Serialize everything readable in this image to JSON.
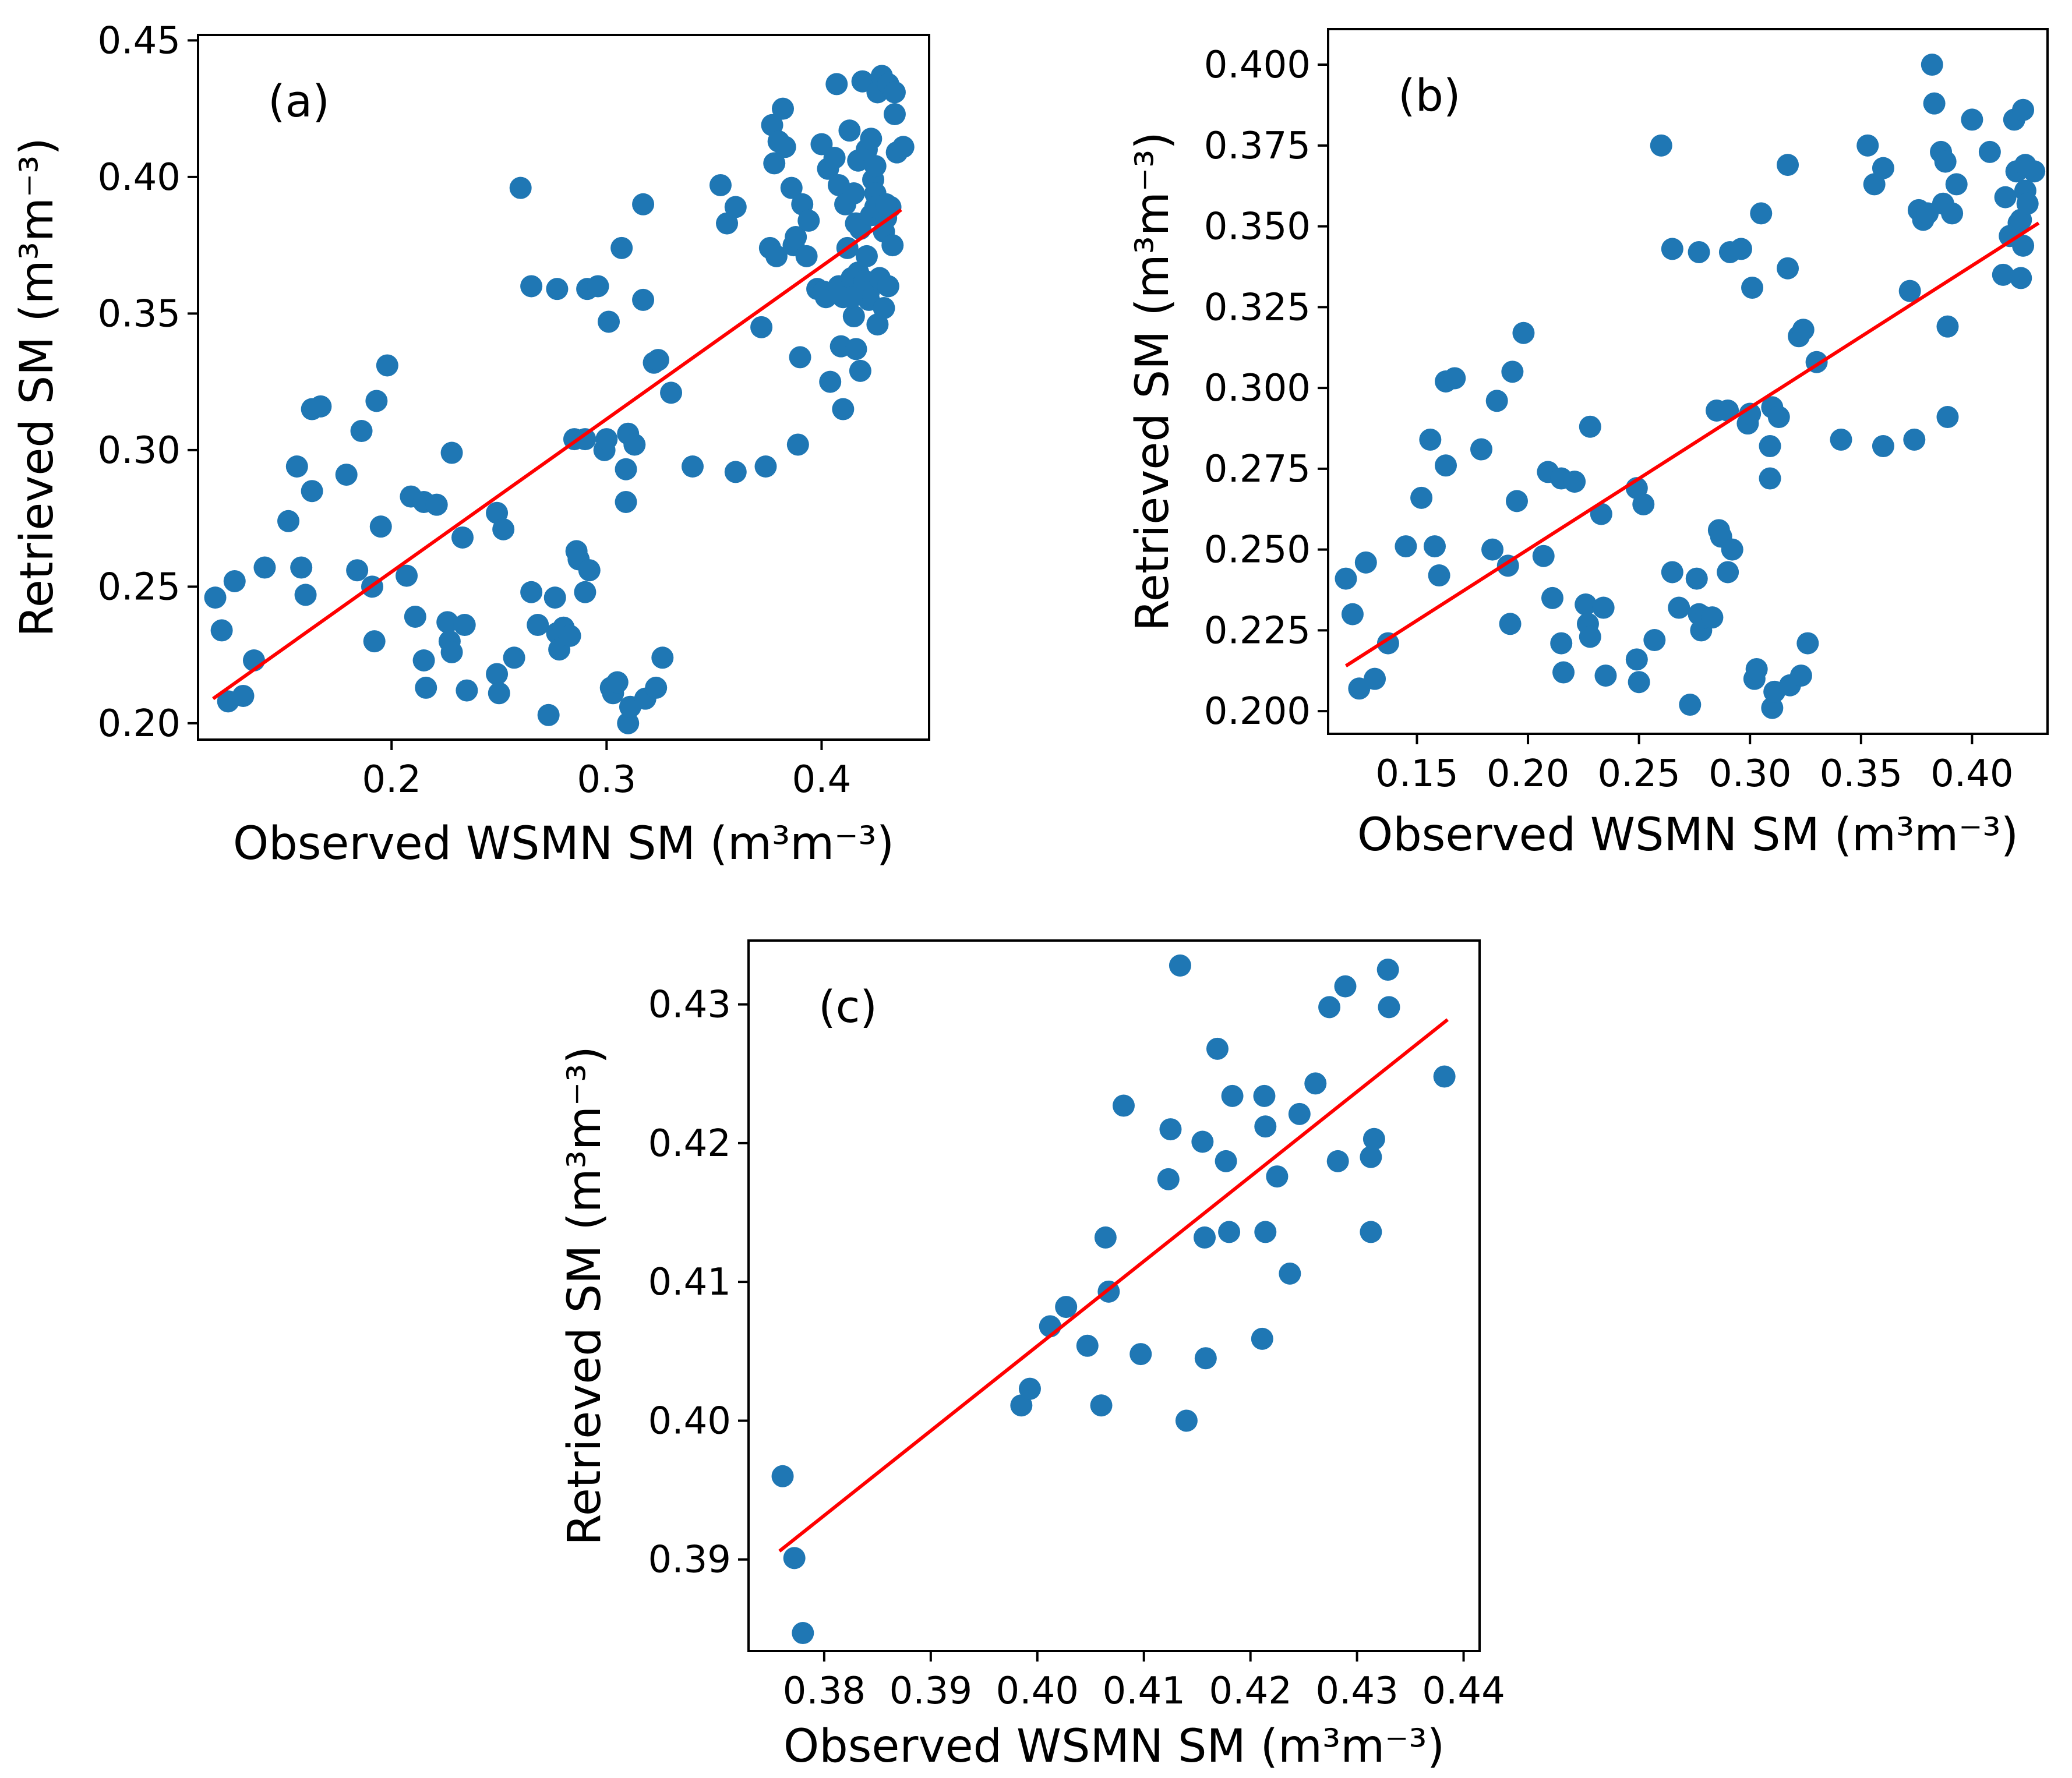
{
  "chart_data": [
    {
      "type": "scatter",
      "panel_label": "(a)",
      "xlabel": "Observed WSMN SM (m³m⁻³)",
      "ylabel": "Retrieved SM (m³m⁻³)",
      "xlim": [
        0.11,
        0.45
      ],
      "ylim": [
        0.194,
        0.452
      ],
      "xticks": [
        0.2,
        0.3,
        0.4
      ],
      "xtick_labels": [
        "0.2",
        "0.3",
        "0.4"
      ],
      "yticks": [
        0.2,
        0.25,
        0.3,
        0.35,
        0.4,
        0.45
      ],
      "ytick_labels": [
        "0.20",
        "0.25",
        "0.30",
        "0.35",
        "0.40",
        "0.45"
      ],
      "marker_color": "#1f77b4",
      "fit_color": "#ff0000",
      "fit_line": {
        "x": [
          0.117,
          0.437
        ],
        "y": [
          0.209,
          0.388
        ]
      },
      "points": [
        [
          0.118,
          0.246
        ],
        [
          0.121,
          0.234
        ],
        [
          0.124,
          0.208
        ],
        [
          0.127,
          0.252
        ],
        [
          0.131,
          0.21
        ],
        [
          0.136,
          0.223
        ],
        [
          0.141,
          0.257
        ],
        [
          0.152,
          0.274
        ],
        [
          0.156,
          0.294
        ],
        [
          0.158,
          0.257
        ],
        [
          0.16,
          0.247
        ],
        [
          0.163,
          0.285
        ],
        [
          0.163,
          0.315
        ],
        [
          0.167,
          0.316
        ],
        [
          0.179,
          0.291
        ],
        [
          0.184,
          0.256
        ],
        [
          0.186,
          0.307
        ],
        [
          0.191,
          0.25
        ],
        [
          0.192,
          0.23
        ],
        [
          0.193,
          0.318
        ],
        [
          0.195,
          0.272
        ],
        [
          0.198,
          0.331
        ],
        [
          0.207,
          0.254
        ],
        [
          0.209,
          0.283
        ],
        [
          0.211,
          0.239
        ],
        [
          0.215,
          0.281
        ],
        [
          0.215,
          0.223
        ],
        [
          0.216,
          0.213
        ],
        [
          0.221,
          0.28
        ],
        [
          0.226,
          0.237
        ],
        [
          0.227,
          0.23
        ],
        [
          0.228,
          0.226
        ],
        [
          0.228,
          0.299
        ],
        [
          0.233,
          0.268
        ],
        [
          0.234,
          0.236
        ],
        [
          0.235,
          0.212
        ],
        [
          0.249,
          0.277
        ],
        [
          0.249,
          0.218
        ],
        [
          0.25,
          0.211
        ],
        [
          0.252,
          0.271
        ],
        [
          0.257,
          0.224
        ],
        [
          0.26,
          0.396
        ],
        [
          0.265,
          0.36
        ],
        [
          0.265,
          0.248
        ],
        [
          0.268,
          0.236
        ],
        [
          0.273,
          0.203
        ],
        [
          0.276,
          0.246
        ],
        [
          0.277,
          0.233
        ],
        [
          0.277,
          0.359
        ],
        [
          0.278,
          0.227
        ],
        [
          0.28,
          0.235
        ],
        [
          0.283,
          0.232
        ],
        [
          0.285,
          0.304
        ],
        [
          0.286,
          0.263
        ],
        [
          0.287,
          0.26
        ],
        [
          0.29,
          0.304
        ],
        [
          0.29,
          0.248
        ],
        [
          0.291,
          0.359
        ],
        [
          0.292,
          0.256
        ],
        [
          0.296,
          0.36
        ],
        [
          0.299,
          0.3
        ],
        [
          0.3,
          0.304
        ],
        [
          0.301,
          0.347
        ],
        [
          0.302,
          0.213
        ],
        [
          0.303,
          0.211
        ],
        [
          0.305,
          0.215
        ],
        [
          0.307,
          0.374
        ],
        [
          0.309,
          0.293
        ],
        [
          0.309,
          0.281
        ],
        [
          0.31,
          0.306
        ],
        [
          0.31,
          0.2
        ],
        [
          0.311,
          0.206
        ],
        [
          0.313,
          0.302
        ],
        [
          0.317,
          0.355
        ],
        [
          0.317,
          0.39
        ],
        [
          0.318,
          0.209
        ],
        [
          0.322,
          0.332
        ],
        [
          0.323,
          0.213
        ],
        [
          0.324,
          0.333
        ],
        [
          0.326,
          0.224
        ],
        [
          0.33,
          0.321
        ],
        [
          0.34,
          0.294
        ],
        [
          0.353,
          0.397
        ],
        [
          0.356,
          0.383
        ],
        [
          0.36,
          0.389
        ],
        [
          0.36,
          0.292
        ],
        [
          0.372,
          0.345
        ],
        [
          0.374,
          0.294
        ],
        [
          0.376,
          0.374
        ],
        [
          0.377,
          0.419
        ],
        [
          0.378,
          0.405
        ],
        [
          0.379,
          0.371
        ],
        [
          0.38,
          0.413
        ],
        [
          0.382,
          0.425
        ],
        [
          0.383,
          0.411
        ],
        [
          0.386,
          0.396
        ],
        [
          0.387,
          0.375
        ],
        [
          0.388,
          0.378
        ],
        [
          0.389,
          0.302
        ],
        [
          0.39,
          0.334
        ],
        [
          0.391,
          0.39
        ],
        [
          0.393,
          0.371
        ],
        [
          0.394,
          0.384
        ],
        [
          0.398,
          0.359
        ],
        [
          0.4,
          0.412
        ],
        [
          0.401,
          0.358
        ],
        [
          0.402,
          0.356
        ],
        [
          0.403,
          0.403
        ],
        [
          0.404,
          0.325
        ],
        [
          0.406,
          0.407
        ],
        [
          0.407,
          0.434
        ],
        [
          0.408,
          0.397
        ],
        [
          0.408,
          0.36
        ],
        [
          0.409,
          0.338
        ],
        [
          0.41,
          0.315
        ],
        [
          0.41,
          0.356
        ],
        [
          0.411,
          0.39
        ],
        [
          0.412,
          0.374
        ],
        [
          0.413,
          0.417
        ],
        [
          0.414,
          0.363
        ],
        [
          0.415,
          0.349
        ],
        [
          0.415,
          0.394
        ],
        [
          0.416,
          0.383
        ],
        [
          0.416,
          0.337
        ],
        [
          0.417,
          0.406
        ],
        [
          0.417,
          0.365
        ],
        [
          0.418,
          0.329
        ],
        [
          0.418,
          0.381
        ],
        [
          0.419,
          0.435
        ],
        [
          0.42,
          0.362
        ],
        [
          0.421,
          0.41
        ],
        [
          0.421,
          0.371
        ],
        [
          0.422,
          0.358
        ],
        [
          0.422,
          0.355
        ],
        [
          0.423,
          0.414
        ],
        [
          0.423,
          0.386
        ],
        [
          0.424,
          0.399
        ],
        [
          0.425,
          0.404
        ],
        [
          0.425,
          0.394
        ],
        [
          0.426,
          0.346
        ],
        [
          0.426,
          0.431
        ],
        [
          0.427,
          0.363
        ],
        [
          0.428,
          0.437
        ],
        [
          0.429,
          0.352
        ],
        [
          0.429,
          0.38
        ],
        [
          0.43,
          0.385
        ],
        [
          0.431,
          0.434
        ],
        [
          0.431,
          0.36
        ],
        [
          0.432,
          0.389
        ],
        [
          0.433,
          0.375
        ],
        [
          0.434,
          0.431
        ],
        [
          0.434,
          0.423
        ],
        [
          0.435,
          0.409
        ],
        [
          0.438,
          0.411
        ],
        [
          0.425,
          0.389
        ],
        [
          0.43,
          0.39
        ],
        [
          0.414,
          0.356
        ]
      ]
    },
    {
      "type": "scatter",
      "panel_label": "(b)",
      "xlabel": "Observed WSMN SM (m³m⁻³)",
      "ylabel": "Retrieved SM (m³m⁻³)",
      "xlim": [
        0.11,
        0.434
      ],
      "ylim": [
        0.193,
        0.411
      ],
      "xticks": [
        0.15,
        0.2,
        0.25,
        0.3,
        0.35,
        0.4
      ],
      "xtick_labels": [
        "0.15",
        "0.20",
        "0.25",
        "0.30",
        "0.35",
        "0.40"
      ],
      "yticks": [
        0.2,
        0.225,
        0.25,
        0.275,
        0.3,
        0.325,
        0.35,
        0.375,
        0.4
      ],
      "ytick_labels": [
        "0.200",
        "0.225",
        "0.250",
        "0.275",
        "0.300",
        "0.325",
        "0.350",
        "0.375",
        "0.400"
      ],
      "marker_color": "#1f77b4",
      "fit_color": "#ff0000",
      "fit_line": {
        "x": [
          0.118,
          0.43
        ],
        "y": [
          0.214,
          0.351
        ]
      },
      "points": [
        [
          0.118,
          0.241
        ],
        [
          0.121,
          0.23
        ],
        [
          0.124,
          0.207
        ],
        [
          0.127,
          0.246
        ],
        [
          0.131,
          0.21
        ],
        [
          0.137,
          0.221
        ],
        [
          0.145,
          0.251
        ],
        [
          0.152,
          0.266
        ],
        [
          0.156,
          0.284
        ],
        [
          0.158,
          0.251
        ],
        [
          0.16,
          0.242
        ],
        [
          0.163,
          0.276
        ],
        [
          0.163,
          0.302
        ],
        [
          0.167,
          0.303
        ],
        [
          0.179,
          0.281
        ],
        [
          0.184,
          0.25
        ],
        [
          0.186,
          0.296
        ],
        [
          0.191,
          0.245
        ],
        [
          0.192,
          0.227
        ],
        [
          0.193,
          0.305
        ],
        [
          0.195,
          0.265
        ],
        [
          0.198,
          0.317
        ],
        [
          0.207,
          0.248
        ],
        [
          0.209,
          0.274
        ],
        [
          0.211,
          0.235
        ],
        [
          0.215,
          0.272
        ],
        [
          0.215,
          0.221
        ],
        [
          0.216,
          0.212
        ],
        [
          0.221,
          0.271
        ],
        [
          0.226,
          0.233
        ],
        [
          0.227,
          0.227
        ],
        [
          0.228,
          0.223
        ],
        [
          0.228,
          0.288
        ],
        [
          0.233,
          0.261
        ],
        [
          0.234,
          0.232
        ],
        [
          0.235,
          0.211
        ],
        [
          0.249,
          0.269
        ],
        [
          0.249,
          0.216
        ],
        [
          0.25,
          0.209
        ],
        [
          0.252,
          0.264
        ],
        [
          0.257,
          0.222
        ],
        [
          0.26,
          0.375
        ],
        [
          0.265,
          0.343
        ],
        [
          0.265,
          0.243
        ],
        [
          0.268,
          0.232
        ],
        [
          0.273,
          0.202
        ],
        [
          0.276,
          0.241
        ],
        [
          0.277,
          0.23
        ],
        [
          0.277,
          0.342
        ],
        [
          0.278,
          0.225
        ],
        [
          0.28,
          0.229
        ],
        [
          0.283,
          0.229
        ],
        [
          0.285,
          0.293
        ],
        [
          0.286,
          0.256
        ],
        [
          0.287,
          0.254
        ],
        [
          0.29,
          0.293
        ],
        [
          0.29,
          0.243
        ],
        [
          0.291,
          0.342
        ],
        [
          0.292,
          0.25
        ],
        [
          0.296,
          0.343
        ],
        [
          0.299,
          0.289
        ],
        [
          0.3,
          0.292
        ],
        [
          0.301,
          0.331
        ],
        [
          0.302,
          0.21
        ],
        [
          0.303,
          0.213
        ],
        [
          0.305,
          0.354
        ],
        [
          0.309,
          0.282
        ],
        [
          0.309,
          0.272
        ],
        [
          0.31,
          0.294
        ],
        [
          0.31,
          0.201
        ],
        [
          0.311,
          0.206
        ],
        [
          0.313,
          0.291
        ],
        [
          0.317,
          0.337
        ],
        [
          0.317,
          0.369
        ],
        [
          0.318,
          0.208
        ],
        [
          0.322,
          0.316
        ],
        [
          0.323,
          0.211
        ],
        [
          0.324,
          0.318
        ],
        [
          0.326,
          0.221
        ],
        [
          0.33,
          0.308
        ],
        [
          0.341,
          0.284
        ],
        [
          0.353,
          0.375
        ],
        [
          0.356,
          0.363
        ],
        [
          0.36,
          0.368
        ],
        [
          0.36,
          0.282
        ],
        [
          0.372,
          0.33
        ],
        [
          0.374,
          0.284
        ],
        [
          0.376,
          0.355
        ],
        [
          0.378,
          0.352
        ],
        [
          0.38,
          0.354
        ],
        [
          0.382,
          0.4
        ],
        [
          0.383,
          0.388
        ],
        [
          0.386,
          0.373
        ],
        [
          0.387,
          0.357
        ],
        [
          0.388,
          0.37
        ],
        [
          0.389,
          0.291
        ],
        [
          0.389,
          0.319
        ],
        [
          0.391,
          0.354
        ],
        [
          0.393,
          0.363
        ],
        [
          0.4,
          0.383
        ],
        [
          0.408,
          0.373
        ],
        [
          0.414,
          0.335
        ],
        [
          0.415,
          0.359
        ],
        [
          0.417,
          0.347
        ],
        [
          0.419,
          0.383
        ],
        [
          0.42,
          0.367
        ],
        [
          0.421,
          0.351
        ],
        [
          0.422,
          0.352
        ],
        [
          0.422,
          0.334
        ],
        [
          0.423,
          0.386
        ],
        [
          0.423,
          0.344
        ],
        [
          0.424,
          0.361
        ],
        [
          0.425,
          0.357
        ],
        [
          0.428,
          0.367
        ],
        [
          0.424,
          0.369
        ]
      ]
    },
    {
      "type": "scatter",
      "panel_label": "(c)",
      "xlabel": "Observed WSMN SM (m³m⁻³)",
      "ylabel": "Retrieved SM (m³m⁻³)",
      "xlim": [
        0.3729,
        0.4415
      ],
      "ylim": [
        0.3834,
        0.4346
      ],
      "xticks": [
        0.38,
        0.39,
        0.4,
        0.41,
        0.42,
        0.43,
        0.44
      ],
      "xtick_labels": [
        "0.38",
        "0.39",
        "0.40",
        "0.41",
        "0.42",
        "0.43",
        "0.44"
      ],
      "yticks": [
        0.39,
        0.4,
        0.41,
        0.42,
        0.43
      ],
      "ytick_labels": [
        "0.39",
        "0.40",
        "0.41",
        "0.42",
        "0.43"
      ],
      "marker_color": "#1f77b4",
      "fit_color": "#ff0000",
      "fit_line": {
        "x": [
          0.3758,
          0.4385
        ],
        "y": [
          0.3906,
          0.4289
        ]
      },
      "points": [
        [
          0.3761,
          0.396
        ],
        [
          0.3772,
          0.3901
        ],
        [
          0.378,
          0.3847
        ],
        [
          0.3985,
          0.4011
        ],
        [
          0.3993,
          0.4023
        ],
        [
          0.4012,
          0.4068
        ],
        [
          0.4027,
          0.4082
        ],
        [
          0.4047,
          0.4054
        ],
        [
          0.406,
          0.4011
        ],
        [
          0.4064,
          0.4132
        ],
        [
          0.4067,
          0.4093
        ],
        [
          0.4081,
          0.4227
        ],
        [
          0.4097,
          0.4048
        ],
        [
          0.4123,
          0.4174
        ],
        [
          0.4125,
          0.421
        ],
        [
          0.4134,
          0.4328
        ],
        [
          0.414,
          0.4
        ],
        [
          0.4155,
          0.4201
        ],
        [
          0.4157,
          0.4132
        ],
        [
          0.4158,
          0.4045
        ],
        [
          0.4169,
          0.4268
        ],
        [
          0.4177,
          0.4187
        ],
        [
          0.418,
          0.4136
        ],
        [
          0.4183,
          0.4234
        ],
        [
          0.4211,
          0.4059
        ],
        [
          0.4213,
          0.4234
        ],
        [
          0.4214,
          0.4212
        ],
        [
          0.4214,
          0.4136
        ],
        [
          0.4225,
          0.4176
        ],
        [
          0.4237,
          0.4106
        ],
        [
          0.4246,
          0.4221
        ],
        [
          0.4261,
          0.4243
        ],
        [
          0.4274,
          0.4298
        ],
        [
          0.4282,
          0.4187
        ],
        [
          0.4289,
          0.4313
        ],
        [
          0.4313,
          0.4136
        ],
        [
          0.4313,
          0.419
        ],
        [
          0.4316,
          0.4203
        ],
        [
          0.4329,
          0.4325
        ],
        [
          0.433,
          0.4298
        ],
        [
          0.4382,
          0.4248
        ]
      ]
    }
  ]
}
